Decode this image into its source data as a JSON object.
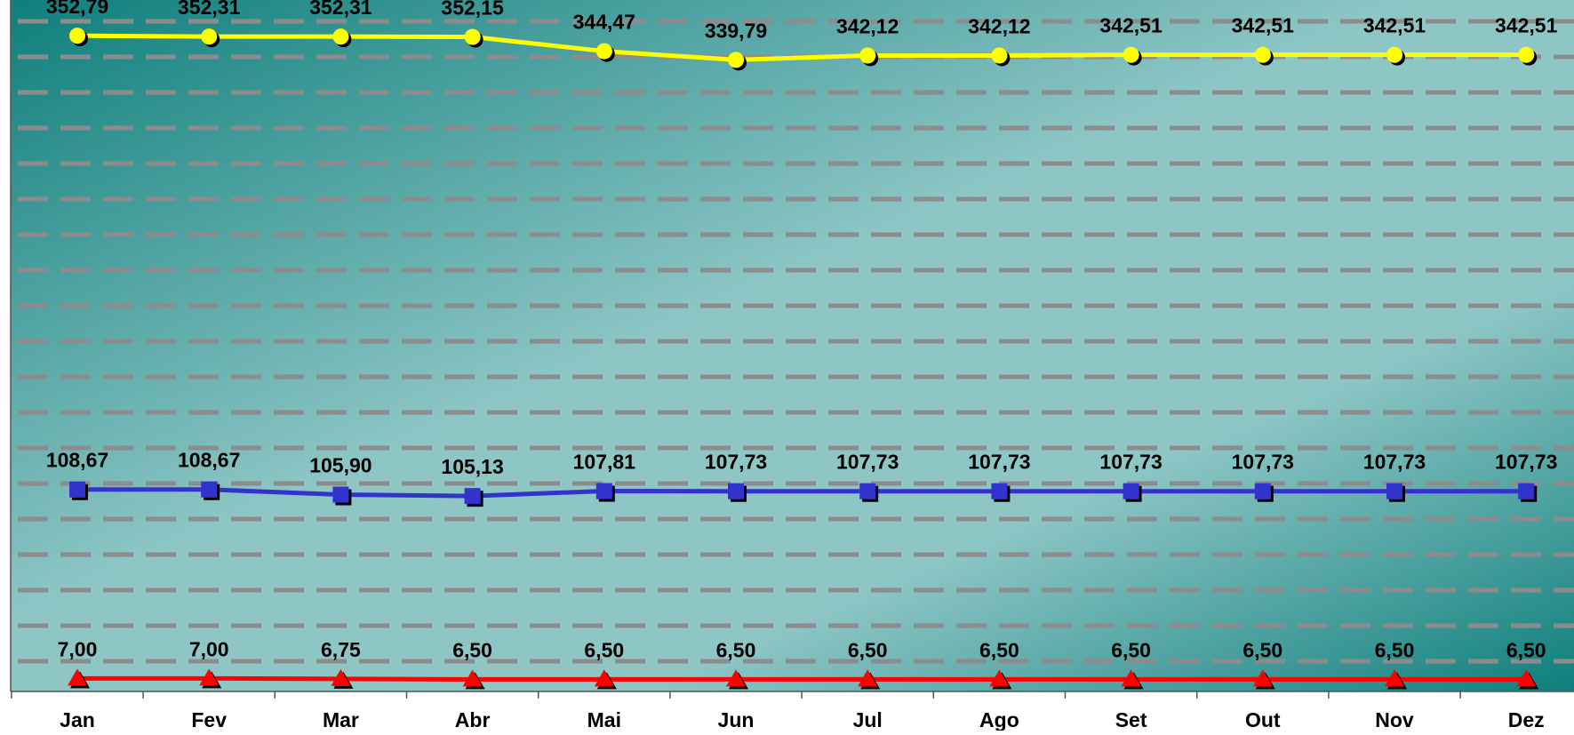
{
  "chart_data": {
    "type": "line",
    "title": "",
    "xlabel": "",
    "ylabel": "",
    "categories": [
      "Jan",
      "Fev",
      "Mar",
      "Abr",
      "Mai",
      "Jun",
      "Jul",
      "Ago",
      "Set",
      "Out",
      "Nov",
      "Dez"
    ],
    "ylim": [
      0,
      372
    ],
    "grid": true,
    "legend": "none",
    "series": [
      {
        "key": "yellow",
        "marker": "circle",
        "color": "#ffff00",
        "values": [
          352.79,
          352.31,
          352.31,
          352.15,
          344.47,
          339.79,
          342.12,
          342.12,
          342.51,
          342.51,
          342.51,
          342.51
        ],
        "labels": [
          "352,79",
          "352,31",
          "352,31",
          "352,15",
          "344,47",
          "339,79",
          "342,12",
          "342,12",
          "342,51",
          "342,51",
          "342,51",
          "342,51"
        ]
      },
      {
        "key": "blue",
        "marker": "square",
        "color": "#3333cc",
        "values": [
          108.67,
          108.67,
          105.9,
          105.13,
          107.81,
          107.73,
          107.73,
          107.73,
          107.73,
          107.73,
          107.73,
          107.73
        ],
        "labels": [
          "108,67",
          "108,67",
          "105,90",
          "105,13",
          "107,81",
          "107,73",
          "107,73",
          "107,73",
          "107,73",
          "107,73",
          "107,73",
          "107,73"
        ]
      },
      {
        "key": "red",
        "marker": "triangle",
        "color": "#ff0000",
        "values": [
          7.0,
          7.0,
          6.75,
          6.5,
          6.5,
          6.5,
          6.5,
          6.5,
          6.5,
          6.5,
          6.5,
          6.5
        ],
        "labels": [
          "7,00",
          "7,00",
          "6,75",
          "6,50",
          "6,50",
          "6,50",
          "6,50",
          "6,50",
          "6,50",
          "6,50",
          "6,50",
          "6,50"
        ]
      }
    ]
  },
  "colors": {
    "background_dark": "#0e7f7c",
    "background_light": "#8ec6c6",
    "gridline": "#8c8c8c",
    "axis": "#555555"
  }
}
